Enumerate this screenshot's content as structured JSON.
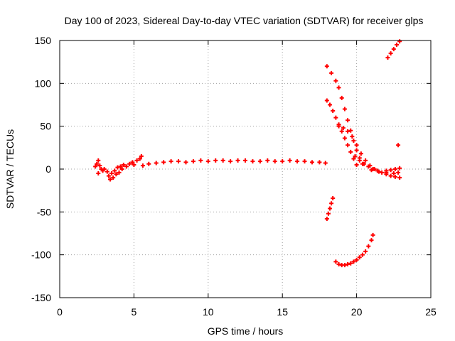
{
  "chart_data": {
    "type": "scatter",
    "title": "Day 100 of 2023, Sidereal Day-to-day VTEC variation (SDTVAR) for receiver glps",
    "xlabel": "GPS time / hours",
    "ylabel": "SDTVAR / TECUs",
    "xlim": [
      0,
      25
    ],
    "ylim": [
      -150,
      150
    ],
    "x_ticks": [
      0,
      5,
      10,
      15,
      20,
      25
    ],
    "y_ticks": [
      -150,
      -100,
      -50,
      0,
      50,
      100,
      150
    ],
    "x_tick_labels": [
      "0",
      "5",
      "10",
      "15",
      "20",
      "25"
    ],
    "y_tick_labels": [
      "-150",
      "-100",
      "-50",
      "0",
      "50",
      "100",
      "150"
    ],
    "grid": true,
    "marker": "+",
    "color": "#ff0000",
    "series": [
      {
        "values": [
          [
            2.4,
            3
          ],
          [
            2.5,
            6
          ],
          [
            2.6,
            10
          ],
          [
            2.7,
            4
          ],
          [
            2.8,
            0
          ],
          [
            2.6,
            -5
          ],
          [
            2.9,
            -2
          ],
          [
            3.0,
            0
          ],
          [
            3.2,
            -3
          ],
          [
            3.3,
            -8
          ],
          [
            3.4,
            -12
          ],
          [
            3.5,
            -5
          ],
          [
            3.6,
            -10
          ],
          [
            3.7,
            -2
          ],
          [
            3.8,
            -6
          ],
          [
            3.9,
            2
          ],
          [
            4.0,
            -4
          ],
          [
            4.1,
            3
          ],
          [
            4.2,
            0
          ],
          [
            4.3,
            5
          ],
          [
            4.5,
            3
          ],
          [
            4.7,
            6
          ],
          [
            4.9,
            8
          ],
          [
            5.0,
            5
          ],
          [
            5.2,
            10
          ],
          [
            5.4,
            12
          ],
          [
            5.5,
            15
          ],
          [
            5.6,
            4
          ],
          [
            6.0,
            6
          ],
          [
            6.5,
            7
          ],
          [
            7.0,
            8
          ],
          [
            7.5,
            9
          ],
          [
            8.0,
            9
          ],
          [
            8.5,
            8
          ],
          [
            9.0,
            9
          ],
          [
            9.5,
            10
          ],
          [
            10.0,
            9
          ],
          [
            10.5,
            10
          ],
          [
            11.0,
            10
          ],
          [
            11.5,
            9
          ],
          [
            12.0,
            10
          ],
          [
            12.5,
            10
          ],
          [
            13.0,
            9
          ],
          [
            13.5,
            9
          ],
          [
            14.0,
            10
          ],
          [
            14.5,
            9
          ],
          [
            15.0,
            9
          ],
          [
            15.5,
            10
          ],
          [
            16.0,
            9
          ],
          [
            16.5,
            9
          ],
          [
            17.0,
            8
          ],
          [
            17.5,
            8
          ],
          [
            17.9,
            7
          ],
          [
            18.0,
            -58
          ],
          [
            18.1,
            -52
          ],
          [
            18.2,
            -46
          ],
          [
            18.3,
            -40
          ],
          [
            18.4,
            -34
          ],
          [
            18.0,
            80
          ],
          [
            18.2,
            75
          ],
          [
            18.4,
            68
          ],
          [
            18.6,
            60
          ],
          [
            18.8,
            52
          ],
          [
            19.0,
            44
          ],
          [
            19.2,
            36
          ],
          [
            19.4,
            28
          ],
          [
            19.6,
            20
          ],
          [
            19.8,
            12
          ],
          [
            20.0,
            5
          ],
          [
            18.0,
            120
          ],
          [
            18.3,
            112
          ],
          [
            18.6,
            103
          ],
          [
            18.8,
            95
          ],
          [
            19.0,
            83
          ],
          [
            19.2,
            70
          ],
          [
            19.4,
            57
          ],
          [
            19.6,
            45
          ],
          [
            19.8,
            33
          ],
          [
            20.0,
            22
          ],
          [
            20.2,
            13
          ],
          [
            20.4,
            6
          ],
          [
            18.8,
            50
          ],
          [
            19.1,
            48
          ],
          [
            19.4,
            44
          ],
          [
            19.7,
            38
          ],
          [
            20.0,
            28
          ],
          [
            20.3,
            18
          ],
          [
            20.6,
            10
          ],
          [
            20.9,
            4
          ],
          [
            21.2,
            0
          ],
          [
            19.9,
            15
          ],
          [
            20.2,
            10
          ],
          [
            20.5,
            6
          ],
          [
            20.8,
            3
          ],
          [
            21.1,
            0
          ],
          [
            21.4,
            -2
          ],
          [
            21.7,
            -4
          ],
          [
            22.0,
            -6
          ],
          [
            22.3,
            -8
          ],
          [
            22.6,
            -9
          ],
          [
            22.9,
            -10
          ],
          [
            21.0,
            -1
          ],
          [
            21.5,
            -3
          ],
          [
            22.0,
            -4
          ],
          [
            22.5,
            -5
          ],
          [
            22.8,
            -4
          ],
          [
            22.0,
            -2
          ],
          [
            22.3,
            -1
          ],
          [
            22.6,
            0
          ],
          [
            22.9,
            1
          ],
          [
            22.8,
            28
          ],
          [
            18.6,
            -108
          ],
          [
            18.8,
            -111
          ],
          [
            19.0,
            -112
          ],
          [
            19.2,
            -112
          ],
          [
            19.4,
            -111
          ],
          [
            19.6,
            -110
          ],
          [
            19.8,
            -108
          ],
          [
            20.0,
            -106
          ],
          [
            20.2,
            -103
          ],
          [
            20.4,
            -100
          ],
          [
            20.6,
            -96
          ],
          [
            20.8,
            -90
          ],
          [
            21.0,
            -83
          ],
          [
            21.1,
            -77
          ],
          [
            22.1,
            130
          ],
          [
            22.3,
            135
          ],
          [
            22.5,
            140
          ],
          [
            22.7,
            145
          ],
          [
            22.9,
            149
          ]
        ]
      }
    ]
  }
}
